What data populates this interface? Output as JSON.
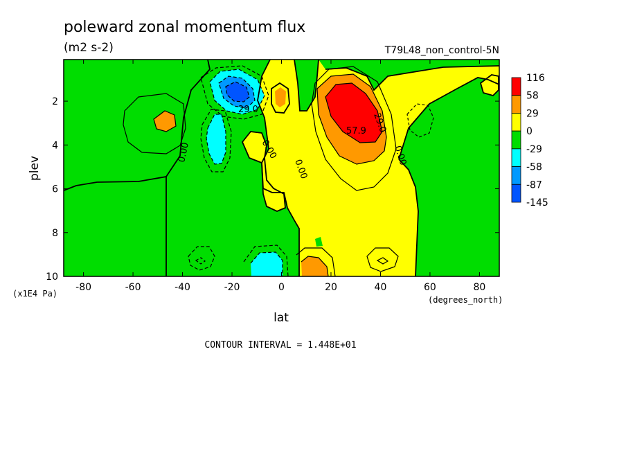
{
  "chart_data": {
    "type": "contour",
    "title": "poleward zonal momentum flux",
    "units": "(m2 s-2)",
    "run_label": "T79L48_non_control-5N",
    "xlabel": "lat",
    "xunits": "(degrees_north)",
    "ylabel": "plev",
    "yunits": "(x1E4 Pa)",
    "xlim": [
      -88,
      88
    ],
    "ylim": [
      10,
      0.1
    ],
    "x_ticks": [
      -80,
      -60,
      -40,
      -20,
      0,
      20,
      40,
      60,
      80
    ],
    "x_tick_labels": [
      "-80",
      "-60",
      "-40",
      "-20",
      "0",
      "20",
      "40",
      "60",
      "80"
    ],
    "y_ticks": [
      2,
      4,
      6,
      8,
      10
    ],
    "y_tick_labels": [
      "2",
      "4",
      "6",
      "8",
      "10"
    ],
    "contour_interval_label": "CONTOUR INTERVAL = 1.448E+01",
    "contour_labels": [
      "29.0",
      "29.0",
      "57.9",
      "0.00",
      "0.00",
      "0.00",
      "0.00",
      "0.00"
    ],
    "colorbar": {
      "labels": [
        "116",
        "58",
        "29",
        "0",
        "-29",
        "-58",
        "-87",
        "-145"
      ],
      "colors": [
        "#ff0000",
        "#ff9900",
        "#ffff00",
        "#00dd00",
        "#00ffff",
        "#0099ff",
        "#0055ff"
      ]
    },
    "fill_colors": {
      "pos_low": "#ffff00",
      "neg_low": "#00dd00",
      "pos_mid": "#ff9900",
      "pos_high": "#ff0000",
      "neg_mid": "#00ffff",
      "neg_high": "#0099ff",
      "neg_max": "#0055ff"
    },
    "features": [
      {
        "kind": "max",
        "lat": 28,
        "plev": 2.5,
        "value": 116
      },
      {
        "kind": "min",
        "lat": -18,
        "plev": 1.6,
        "value": -87
      },
      {
        "kind": "max",
        "lat": -50,
        "plev": 2.9,
        "value": 29
      },
      {
        "kind": "max",
        "lat": 0,
        "plev": 1.8,
        "value": 29
      },
      {
        "kind": "max",
        "lat": 15,
        "plev": 9.5,
        "value": 29
      },
      {
        "kind": "min",
        "lat": -28,
        "plev": 3.8,
        "value": -29
      },
      {
        "kind": "min",
        "lat": -7,
        "plev": 9.5,
        "value": -29
      }
    ]
  }
}
